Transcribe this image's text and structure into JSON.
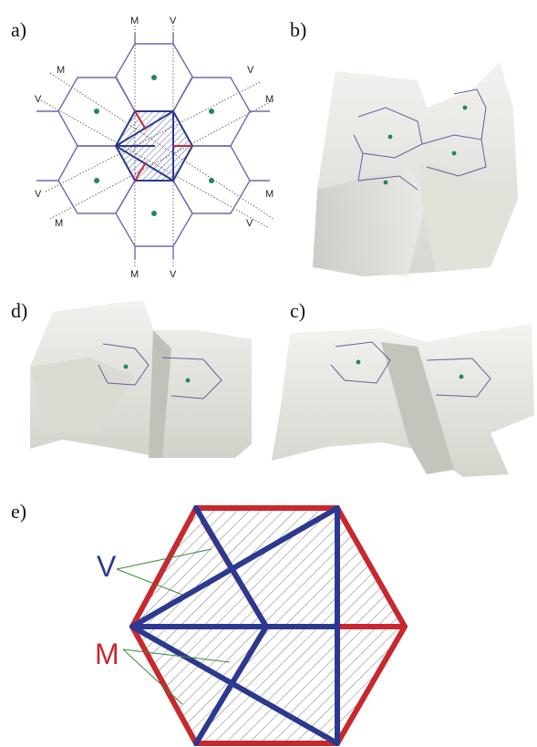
{
  "panels": {
    "a": "a)",
    "b": "b)",
    "c": "c)",
    "d": "d)",
    "e": "e)"
  },
  "panel_a": {
    "top_left_label": "M",
    "top_right_label": "V",
    "bottom_left_label": "M",
    "bottom_right_label": "V",
    "left_upper_m": "M",
    "left_upper_v": "V",
    "left_lower_v": "V",
    "left_lower_m": "M",
    "right_upper_v": "V",
    "right_upper_m": "M",
    "right_lower_m": "M",
    "right_lower_v": "V"
  },
  "panel_e": {
    "valley_label": "V",
    "mountain_label": "M"
  },
  "colors": {
    "hex_outline": "#7a64b0",
    "dot": "#1e8a5a",
    "valley": "#2b3990",
    "mountain": "#c8282e",
    "leader": "#3a8a3a"
  }
}
